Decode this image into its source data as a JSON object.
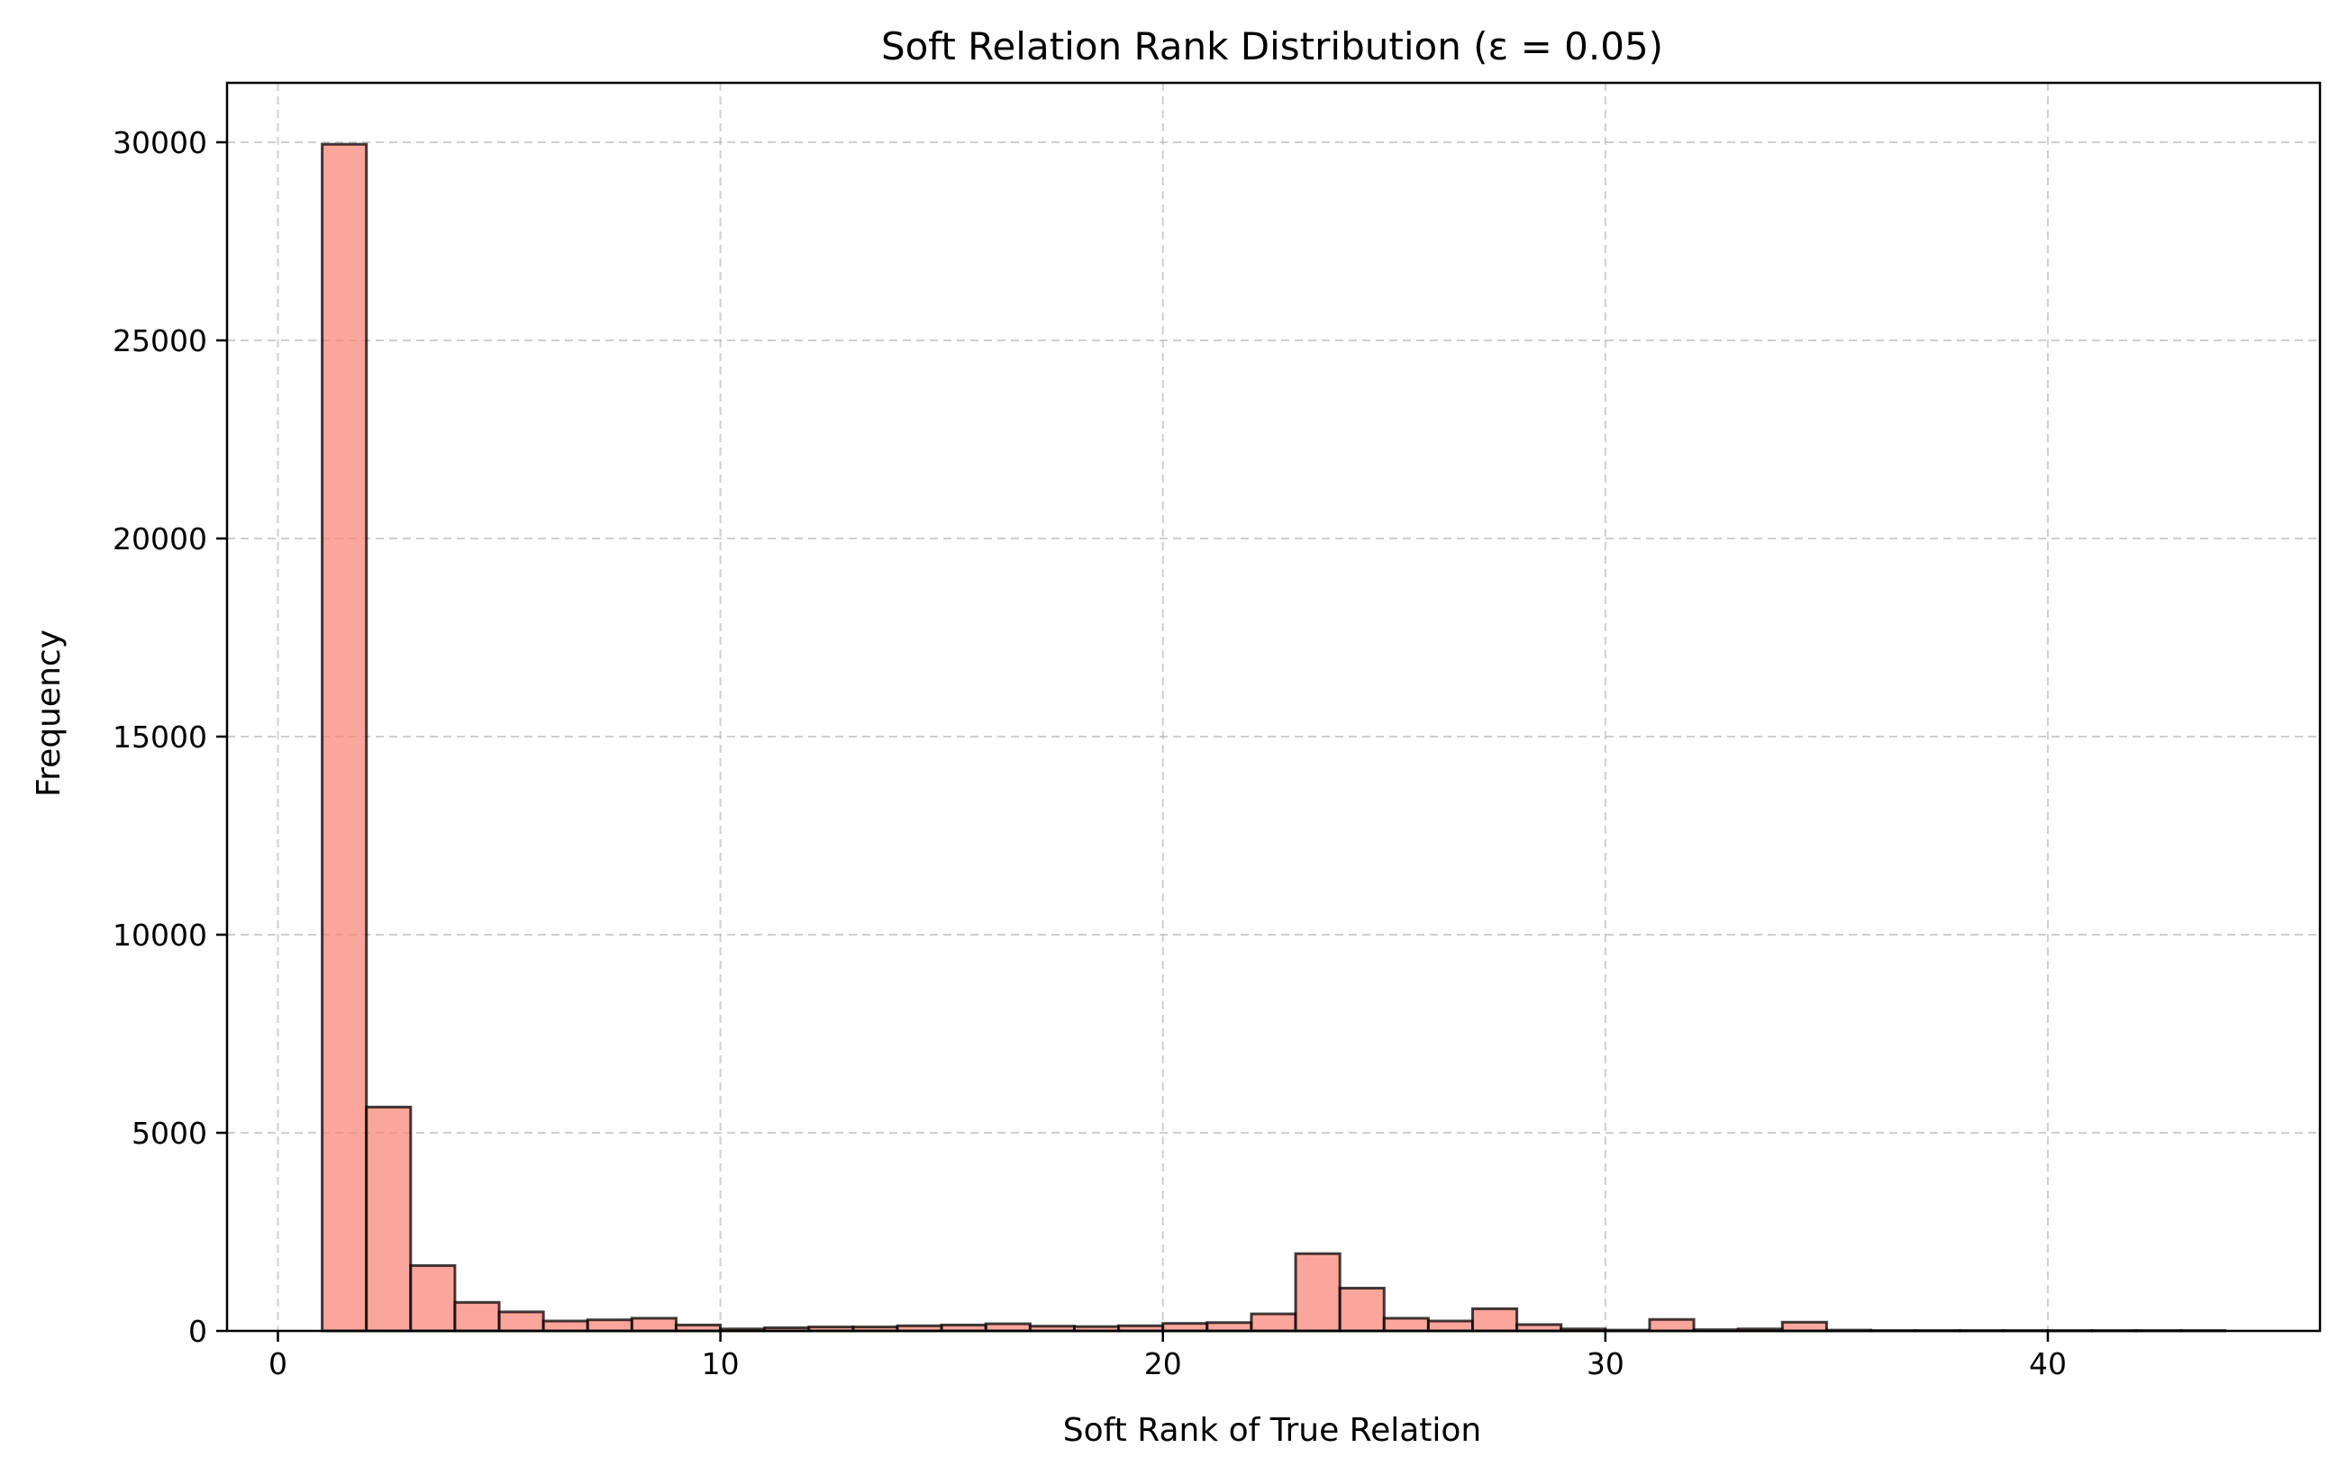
{
  "chart_data": {
    "type": "bar",
    "title": "Soft Relation Rank Distribution (ε = 0.05)",
    "xlabel": "Soft Rank of True Relation",
    "ylabel": "Frequency",
    "xlim": [
      -1.15,
      46.15
    ],
    "ylim": [
      0,
      31500
    ],
    "x_ticks": [
      0,
      10,
      20,
      30,
      40
    ],
    "y_ticks": [
      0,
      5000,
      10000,
      15000,
      20000,
      25000,
      30000
    ],
    "grid": true,
    "bin_edges": [
      1,
      2,
      3,
      4,
      5,
      6,
      7,
      8,
      9,
      10,
      11,
      12,
      13,
      14,
      15,
      16,
      17,
      18,
      19,
      20,
      21,
      22,
      23,
      24,
      25,
      26,
      27,
      28,
      29,
      30,
      31,
      32,
      33,
      34,
      35,
      36,
      37,
      38,
      39,
      40,
      41,
      42,
      43,
      44
    ],
    "values": [
      29950,
      5650,
      1650,
      720,
      480,
      250,
      280,
      320,
      150,
      50,
      80,
      100,
      100,
      130,
      150,
      180,
      120,
      110,
      130,
      190,
      210,
      430,
      1950,
      1080,
      320,
      250,
      560,
      160,
      50,
      20,
      290,
      30,
      50,
      220,
      20,
      10,
      10,
      10,
      10,
      10,
      10,
      10,
      10
    ],
    "colors": {
      "bar_fill": "#fa8072",
      "bar_fill_opacity": 0.7,
      "bar_edge": "#000000",
      "grid": "#b0b0b0"
    }
  }
}
